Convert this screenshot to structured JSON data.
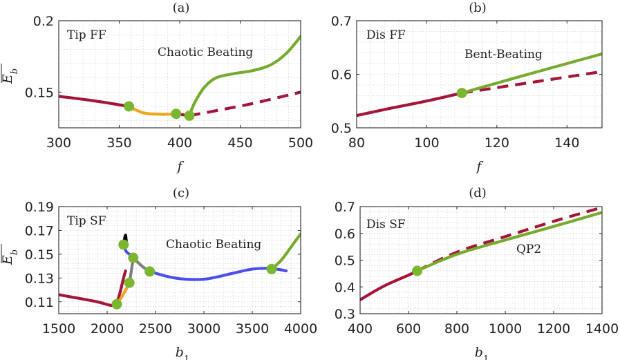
{
  "figure": {
    "panels": [
      {
        "title": "(a)",
        "label": "Tip FF",
        "annotation": "Chaotic Beating",
        "xlabel": "f",
        "ylabel": "E_b",
        "colors": {
          "red": "#a3163a",
          "yellow": "#f0a61c",
          "green": "#76ab2f",
          "marker": "#7bb631"
        }
      },
      {
        "title": "(b)",
        "label": "Dis FF",
        "annotation": "Bent-Beating",
        "xlabel": "f",
        "ylabel": "",
        "colors": {
          "red": "#a3163a",
          "green": "#76ab2f",
          "marker": "#7bb631"
        }
      },
      {
        "title": "(c)",
        "label": "Tip SF",
        "annotation": "Chaotic Beating",
        "xlabel": "b_1",
        "ylabel": "E_b",
        "colors": {
          "red": "#a3163a",
          "yellow": "#f0a61c",
          "gray": "#7f7f7f",
          "blue": "#4a4ef0",
          "black": "#000000",
          "green": "#76ab2f",
          "marker": "#7bb631"
        }
      },
      {
        "title": "(d)",
        "label": "Dis SF",
        "annotation": "QP2",
        "xlabel": "b_1",
        "ylabel": "",
        "colors": {
          "red": "#a3163a",
          "green": "#76ab2f",
          "marker": "#7bb631"
        }
      }
    ]
  },
  "chart_data": [
    {
      "type": "line",
      "title": "(a)",
      "xlabel": "f",
      "ylabel": "E_b",
      "xlim": [
        300,
        500
      ],
      "ylim": [
        0.125,
        0.2
      ],
      "xticks": [
        300,
        350,
        400,
        450,
        500
      ],
      "yticks": [
        0.15,
        0.2
      ],
      "ytick_labels": [
        "0.15",
        "0.2"
      ],
      "grid": true,
      "series": [
        {
          "color": "red",
          "style": "solid",
          "x": [
            300,
            320,
            340,
            358
          ],
          "y": [
            0.147,
            0.145,
            0.1425,
            0.14
          ]
        },
        {
          "color": "yellow",
          "style": "solid",
          "x": [
            358,
            370,
            385,
            397
          ],
          "y": [
            0.14,
            0.1355,
            0.1345,
            0.1348
          ]
        },
        {
          "color": "red",
          "style": "solid",
          "x": [
            397,
            408
          ],
          "y": [
            0.1348,
            0.1335
          ]
        },
        {
          "color": "red",
          "style": "dashed",
          "x": [
            408,
            430,
            460,
            500
          ],
          "y": [
            0.1335,
            0.137,
            0.142,
            0.15
          ]
        },
        {
          "color": "green",
          "style": "solid",
          "x": [
            408,
            412,
            420,
            430,
            445,
            460,
            475,
            488,
            500
          ],
          "y": [
            0.1335,
            0.142,
            0.153,
            0.16,
            0.163,
            0.165,
            0.169,
            0.177,
            0.189
          ]
        }
      ],
      "markers": [
        {
          "x": 358,
          "y": 0.14
        },
        {
          "x": 397,
          "y": 0.1348
        },
        {
          "x": 408,
          "y": 0.1335
        }
      ]
    },
    {
      "type": "line",
      "title": "(b)",
      "xlabel": "f",
      "ylabel": "",
      "xlim": [
        80,
        150
      ],
      "ylim": [
        0.5,
        0.7
      ],
      "xticks": [
        80,
        100,
        120,
        140
      ],
      "yticks": [
        0.5,
        0.6,
        0.7
      ],
      "ytick_labels": [
        "0.5",
        "0.6",
        "0.7"
      ],
      "grid": true,
      "series": [
        {
          "color": "red",
          "style": "solid",
          "x": [
            80,
            90,
            100,
            110
          ],
          "y": [
            0.523,
            0.537,
            0.55,
            0.565
          ]
        },
        {
          "color": "red",
          "style": "dashed",
          "x": [
            110,
            130,
            150
          ],
          "y": [
            0.565,
            0.585,
            0.605
          ]
        },
        {
          "color": "green",
          "style": "solid",
          "x": [
            110,
            130,
            150
          ],
          "y": [
            0.565,
            0.602,
            0.638
          ]
        }
      ],
      "markers": [
        {
          "x": 110,
          "y": 0.565
        }
      ]
    },
    {
      "type": "line",
      "title": "(c)",
      "xlabel": "b_1",
      "ylabel": "E_b",
      "xlim": [
        1500,
        4000
      ],
      "ylim": [
        0.1,
        0.19
      ],
      "xticks": [
        1500,
        2000,
        2500,
        3000,
        3500,
        4000
      ],
      "yticks": [
        0.11,
        0.13,
        0.15,
        0.17,
        0.19
      ],
      "ytick_labels": [
        "0.11",
        "0.13",
        "0.15",
        "0.17",
        "0.19"
      ],
      "grid": true,
      "series": [
        {
          "color": "red",
          "style": "solid",
          "x": [
            1500,
            1700,
            1900,
            2040,
            2100
          ],
          "y": [
            0.116,
            0.113,
            0.11,
            0.107,
            0.108
          ]
        },
        {
          "color": "red",
          "style": "solid",
          "x": [
            2100,
            2140,
            2170,
            2190
          ],
          "y": [
            0.108,
            0.12,
            0.13,
            0.136
          ]
        },
        {
          "color": "yellow",
          "style": "solid",
          "x": [
            2100,
            2150,
            2200,
            2230
          ],
          "y": [
            0.108,
            0.114,
            0.121,
            0.126
          ]
        },
        {
          "color": "gray",
          "style": "solid",
          "x": [
            2230,
            2250,
            2270
          ],
          "y": [
            0.126,
            0.136,
            0.147
          ]
        },
        {
          "color": "gray",
          "style": "solid",
          "x": [
            2270,
            2360,
            2440
          ],
          "y": [
            0.147,
            0.14,
            0.1355
          ]
        },
        {
          "color": "blue",
          "style": "solid",
          "x": [
            2170,
            2200,
            2250,
            2270
          ],
          "y": [
            0.158,
            0.152,
            0.149,
            0.147
          ]
        },
        {
          "color": "blue",
          "style": "solid",
          "x": [
            2440,
            2700,
            3000,
            3300,
            3500,
            3700,
            3850
          ],
          "y": [
            0.1355,
            0.13,
            0.129,
            0.134,
            0.1375,
            0.138,
            0.136
          ]
        },
        {
          "color": "black",
          "style": "solid",
          "x": [
            2170,
            2180,
            2190,
            2195,
            2200
          ],
          "y": [
            0.158,
            0.163,
            0.166,
            0.163,
            0.159
          ]
        },
        {
          "color": "green",
          "style": "solid",
          "x": [
            3700,
            3800,
            3900,
            4000
          ],
          "y": [
            0.1375,
            0.145,
            0.156,
            0.167
          ]
        }
      ],
      "markers": [
        {
          "x": 2100,
          "y": 0.108
        },
        {
          "x": 2230,
          "y": 0.126
        },
        {
          "x": 2270,
          "y": 0.147
        },
        {
          "x": 2170,
          "y": 0.158
        },
        {
          "x": 2440,
          "y": 0.1355
        },
        {
          "x": 3700,
          "y": 0.1375
        }
      ]
    },
    {
      "type": "line",
      "title": "(d)",
      "xlabel": "b_1",
      "ylabel": "",
      "xlim": [
        400,
        1400
      ],
      "ylim": [
        0.3,
        0.7
      ],
      "xticks": [
        400,
        600,
        800,
        1000,
        1200,
        1400
      ],
      "yticks": [
        0.3,
        0.4,
        0.5,
        0.6,
        0.7
      ],
      "ytick_labels": [
        "0.3",
        "0.4",
        "0.5",
        "0.6",
        "0.7"
      ],
      "grid": true,
      "series": [
        {
          "color": "red",
          "style": "solid",
          "x": [
            400,
            500,
            600,
            636
          ],
          "y": [
            0.352,
            0.404,
            0.444,
            0.46
          ]
        },
        {
          "color": "red",
          "style": "dashed",
          "x": [
            636,
            800,
            1000,
            1200,
            1400
          ],
          "y": [
            0.46,
            0.53,
            0.588,
            0.645,
            0.697
          ]
        },
        {
          "color": "green",
          "style": "solid",
          "x": [
            636,
            800,
            1000,
            1200,
            1400
          ],
          "y": [
            0.46,
            0.522,
            0.575,
            0.626,
            0.678
          ]
        }
      ],
      "markers": [
        {
          "x": 636,
          "y": 0.46
        }
      ]
    }
  ]
}
